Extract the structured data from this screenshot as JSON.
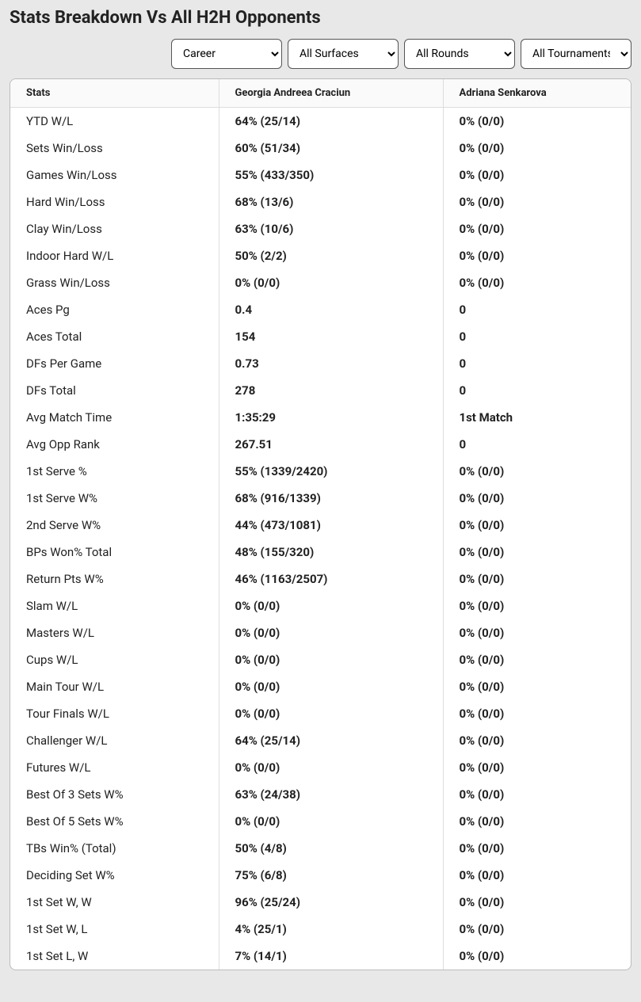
{
  "title": "Stats Breakdown Vs All H2H Opponents",
  "filters": {
    "career": "Career",
    "surfaces": "All Surfaces",
    "rounds": "All Rounds",
    "tournaments": "All Tournaments"
  },
  "columns": {
    "stats": "Stats",
    "player1": "Georgia Andreea Craciun",
    "player2": "Adriana Senkarova"
  },
  "rows": [
    {
      "stat": "YTD W/L",
      "p1": "64% (25/14)",
      "p2": "0% (0/0)"
    },
    {
      "stat": "Sets Win/Loss",
      "p1": "60% (51/34)",
      "p2": "0% (0/0)"
    },
    {
      "stat": "Games Win/Loss",
      "p1": "55% (433/350)",
      "p2": "0% (0/0)"
    },
    {
      "stat": "Hard Win/Loss",
      "p1": "68% (13/6)",
      "p2": "0% (0/0)"
    },
    {
      "stat": "Clay Win/Loss",
      "p1": "63% (10/6)",
      "p2": "0% (0/0)"
    },
    {
      "stat": "Indoor Hard W/L",
      "p1": "50% (2/2)",
      "p2": "0% (0/0)"
    },
    {
      "stat": "Grass Win/Loss",
      "p1": "0% (0/0)",
      "p2": "0% (0/0)"
    },
    {
      "stat": "Aces Pg",
      "p1": "0.4",
      "p2": "0"
    },
    {
      "stat": "Aces Total",
      "p1": "154",
      "p2": "0"
    },
    {
      "stat": "DFs Per Game",
      "p1": "0.73",
      "p2": "0"
    },
    {
      "stat": "DFs Total",
      "p1": "278",
      "p2": "0"
    },
    {
      "stat": "Avg Match Time",
      "p1": "1:35:29",
      "p2": "1st Match"
    },
    {
      "stat": "Avg Opp Rank",
      "p1": "267.51",
      "p2": "0"
    },
    {
      "stat": "1st Serve %",
      "p1": "55% (1339/2420)",
      "p2": "0% (0/0)"
    },
    {
      "stat": "1st Serve W%",
      "p1": "68% (916/1339)",
      "p2": "0% (0/0)"
    },
    {
      "stat": "2nd Serve W%",
      "p1": "44% (473/1081)",
      "p2": "0% (0/0)"
    },
    {
      "stat": "BPs Won% Total",
      "p1": "48% (155/320)",
      "p2": "0% (0/0)"
    },
    {
      "stat": "Return Pts W%",
      "p1": "46% (1163/2507)",
      "p2": "0% (0/0)"
    },
    {
      "stat": "Slam W/L",
      "p1": "0% (0/0)",
      "p2": "0% (0/0)"
    },
    {
      "stat": "Masters W/L",
      "p1": "0% (0/0)",
      "p2": "0% (0/0)"
    },
    {
      "stat": "Cups W/L",
      "p1": "0% (0/0)",
      "p2": "0% (0/0)"
    },
    {
      "stat": "Main Tour W/L",
      "p1": "0% (0/0)",
      "p2": "0% (0/0)"
    },
    {
      "stat": "Tour Finals W/L",
      "p1": "0% (0/0)",
      "p2": "0% (0/0)"
    },
    {
      "stat": "Challenger W/L",
      "p1": "64% (25/14)",
      "p2": "0% (0/0)"
    },
    {
      "stat": "Futures W/L",
      "p1": "0% (0/0)",
      "p2": "0% (0/0)"
    },
    {
      "stat": "Best Of 3 Sets W%",
      "p1": "63% (24/38)",
      "p2": "0% (0/0)"
    },
    {
      "stat": "Best Of 5 Sets W%",
      "p1": "0% (0/0)",
      "p2": "0% (0/0)"
    },
    {
      "stat": "TBs Win% (Total)",
      "p1": "50% (4/8)",
      "p2": "0% (0/0)"
    },
    {
      "stat": "Deciding Set W%",
      "p1": "75% (6/8)",
      "p2": "0% (0/0)"
    },
    {
      "stat": "1st Set W, W",
      "p1": "96% (25/24)",
      "p2": "0% (0/0)"
    },
    {
      "stat": "1st Set W, L",
      "p1": "4% (25/1)",
      "p2": "0% (0/0)"
    },
    {
      "stat": "1st Set L, W",
      "p1": "7% (14/1)",
      "p2": "0% (0/0)"
    }
  ]
}
